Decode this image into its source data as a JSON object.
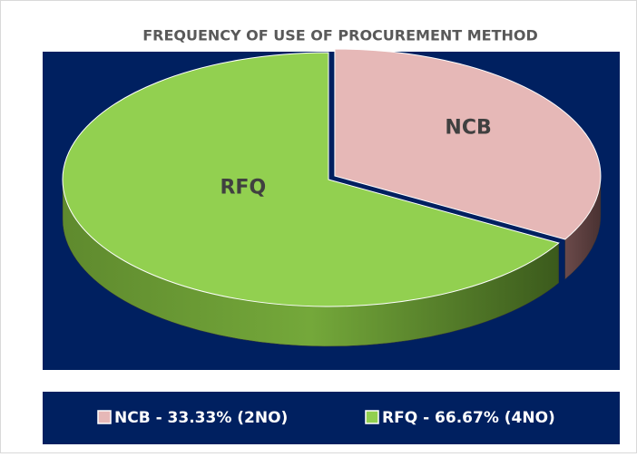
{
  "chart_data": {
    "type": "pie3d",
    "title": "FREQUENCY OF USE OF PROCUREMENT METHOD",
    "categories": [
      "NCB",
      "RFQ"
    ],
    "values": [
      33.33,
      66.67
    ],
    "legend_labels": [
      "NCB - 33.33% (2NO)",
      "RFQ - 66.67% (4NO)"
    ],
    "colors": [
      "#e6b8b7",
      "#92d050"
    ]
  }
}
